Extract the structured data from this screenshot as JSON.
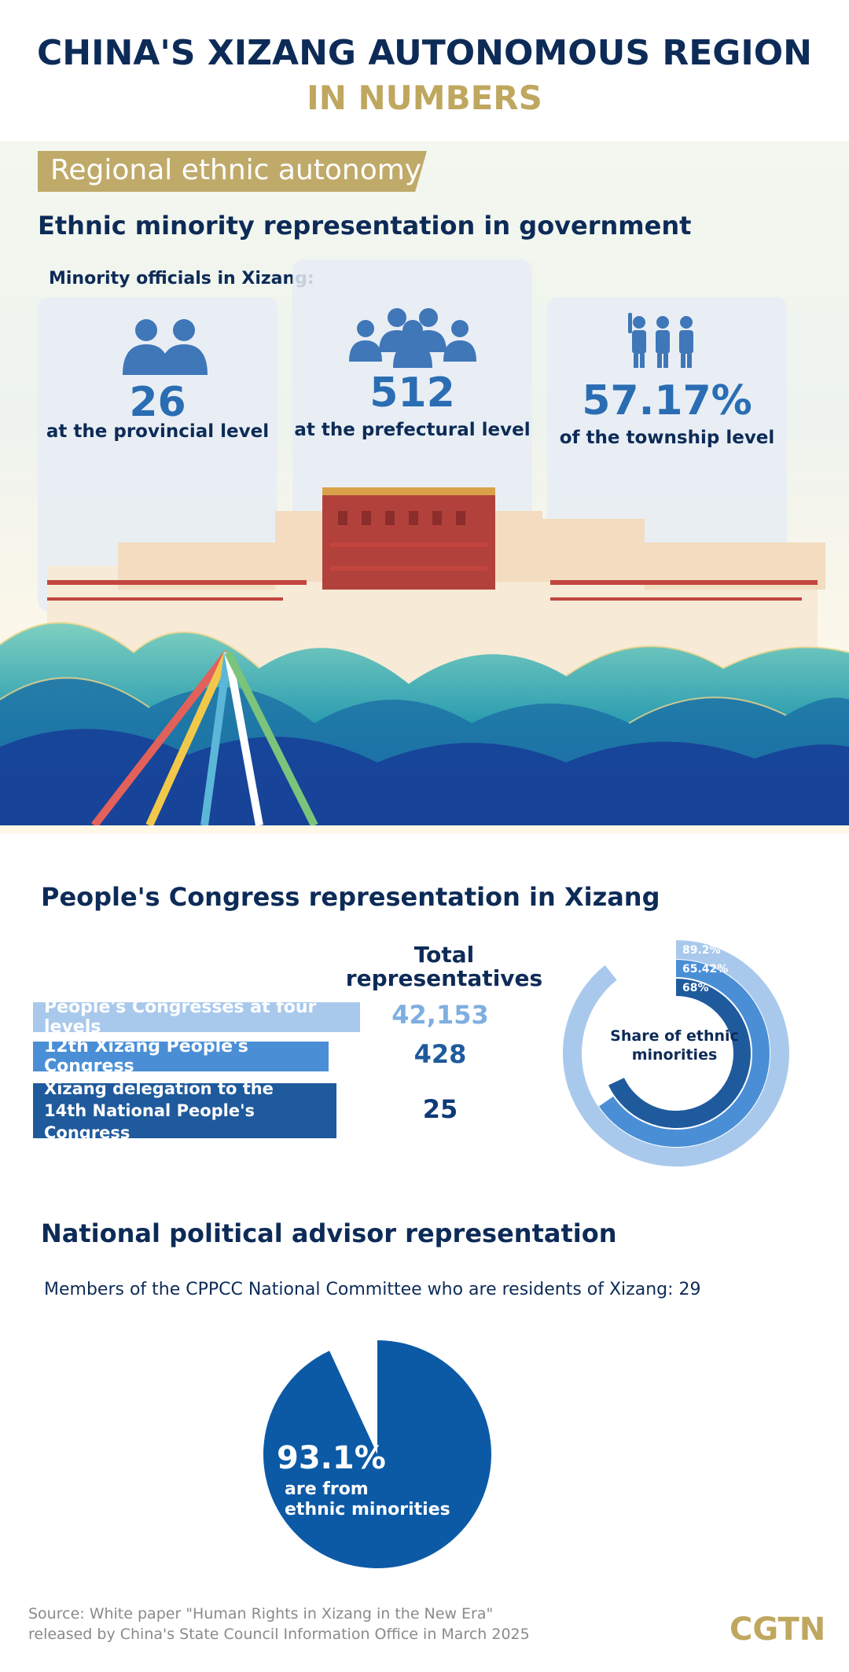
{
  "header": {
    "title_line1": "CHINA'S XIZANG AUTONOMOUS REGION",
    "title_line2": "IN NUMBERS"
  },
  "section1": {
    "banner": "Regional ethnic autonomy",
    "heading": "Ethnic minority representation in government",
    "subheading": "Minority officials in Xizang:",
    "cards": [
      {
        "icon": "two-officials-icon",
        "value": "26",
        "label": "at the provincial level"
      },
      {
        "icon": "group-officials-icon",
        "value": "512",
        "label": "at the prefectural level"
      },
      {
        "icon": "raised-hands-people-icon",
        "value": "57.17%",
        "label": "of the township level"
      }
    ],
    "illustration": "potala-palace-illustration"
  },
  "section2": {
    "heading": "People's Congress representation in Xizang",
    "column_header": "Total representatives",
    "ring_label": "Share of ethnic minorities",
    "colors": [
      "#a9c9ec",
      "#4a8fd6",
      "#1f5a9c"
    ]
  },
  "section3": {
    "heading": "National political advisor representation",
    "caption": "Members of the CPPCC National Committee who are residents of Xizang: 29",
    "pie_value_text": "93.1%",
    "pie_label_line1": "are from",
    "pie_label_line2": "ethnic minorities",
    "color": "#0c5aa6"
  },
  "footer": {
    "source_line1": "Source: White paper \"Human Rights in Xizang in the New Era\"",
    "source_line2": "released by China's State Council Information Office in March 2025",
    "brand": "CGTN"
  },
  "chart_data": [
    {
      "type": "table",
      "title": "People's Congress representation in Xizang",
      "categories": [
        "People's Congresses at four levels",
        "12th Xizang People's Congress",
        "Xizang delegation to the 14th National People's Congress"
      ],
      "series": [
        {
          "name": "Total representatives",
          "values": [
            42153,
            428,
            25
          ],
          "display": [
            "42,153",
            "428",
            "25"
          ]
        }
      ]
    },
    {
      "type": "pie",
      "title": "Share of ethnic minorities",
      "categories": [
        "People's Congresses at four levels",
        "12th Xizang People's Congress",
        "Xizang delegation to the 14th National People's Congress"
      ],
      "values": [
        89.2,
        65.42,
        68
      ],
      "labels": [
        "89.2%",
        "65.42%",
        "68%"
      ]
    },
    {
      "type": "pie",
      "title": "Members of the CPPCC National Committee who are residents of Xizang: 29",
      "categories": [
        "ethnic minorities",
        "other"
      ],
      "values": [
        93.1,
        6.9
      ]
    }
  ]
}
